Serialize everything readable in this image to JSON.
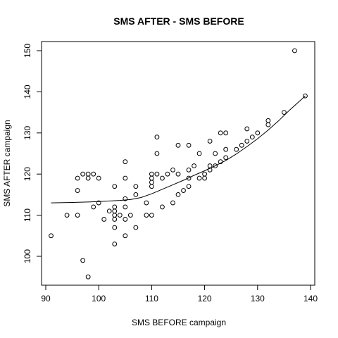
{
  "chart_data": {
    "type": "scatter",
    "title": "SMS AFTER - SMS BEFORE",
    "xlabel": "SMS BEFORE campaign",
    "ylabel": "SMS AFTER campaign",
    "xlim": [
      90,
      140
    ],
    "ylim": [
      93,
      153
    ],
    "xticks": [
      90,
      100,
      110,
      120,
      130,
      140
    ],
    "yticks": [
      100,
      110,
      120,
      130,
      140,
      150
    ],
    "grid": false,
    "points": [
      [
        91,
        105
      ],
      [
        94,
        110
      ],
      [
        96,
        110
      ],
      [
        96,
        116
      ],
      [
        96,
        119
      ],
      [
        97,
        99
      ],
      [
        97,
        120
      ],
      [
        98,
        95
      ],
      [
        98,
        119
      ],
      [
        98,
        120
      ],
      [
        99,
        112
      ],
      [
        99,
        120
      ],
      [
        100,
        113
      ],
      [
        100,
        119
      ],
      [
        101,
        109
      ],
      [
        102,
        111
      ],
      [
        103,
        103
      ],
      [
        103,
        107
      ],
      [
        103,
        109
      ],
      [
        103,
        110
      ],
      [
        103,
        111
      ],
      [
        103,
        112
      ],
      [
        103,
        117
      ],
      [
        104,
        110
      ],
      [
        105,
        105
      ],
      [
        105,
        109
      ],
      [
        105,
        112
      ],
      [
        105,
        114
      ],
      [
        105,
        119
      ],
      [
        105,
        123
      ],
      [
        106,
        110
      ],
      [
        107,
        107
      ],
      [
        107,
        115
      ],
      [
        107,
        117
      ],
      [
        109,
        110
      ],
      [
        109,
        113
      ],
      [
        110,
        110
      ],
      [
        110,
        117
      ],
      [
        110,
        118
      ],
      [
        110,
        119
      ],
      [
        110,
        120
      ],
      [
        111,
        120
      ],
      [
        111,
        125
      ],
      [
        111,
        129
      ],
      [
        112,
        112
      ],
      [
        112,
        119
      ],
      [
        113,
        120
      ],
      [
        114,
        113
      ],
      [
        114,
        121
      ],
      [
        115,
        115
      ],
      [
        115,
        120
      ],
      [
        115,
        127
      ],
      [
        116,
        116
      ],
      [
        117,
        117
      ],
      [
        117,
        119
      ],
      [
        117,
        121
      ],
      [
        117,
        127
      ],
      [
        118,
        122
      ],
      [
        119,
        119
      ],
      [
        119,
        125
      ],
      [
        120,
        119
      ],
      [
        120,
        120
      ],
      [
        121,
        121
      ],
      [
        121,
        122
      ],
      [
        121,
        128
      ],
      [
        122,
        122
      ],
      [
        122,
        125
      ],
      [
        123,
        123
      ],
      [
        123,
        130
      ],
      [
        124,
        124
      ],
      [
        124,
        126
      ],
      [
        124,
        130
      ],
      [
        126,
        126
      ],
      [
        127,
        127
      ],
      [
        128,
        128
      ],
      [
        128,
        131
      ],
      [
        129,
        129
      ],
      [
        130,
        130
      ],
      [
        132,
        132
      ],
      [
        132,
        133
      ],
      [
        135,
        135
      ],
      [
        137,
        150
      ],
      [
        139,
        139
      ]
    ],
    "smooth_line": [
      [
        91,
        113
      ],
      [
        95,
        113.1
      ],
      [
        100,
        113.3
      ],
      [
        104,
        113.6
      ],
      [
        106,
        113.8
      ],
      [
        108,
        114.3
      ],
      [
        110,
        115.2
      ],
      [
        112,
        116.3
      ],
      [
        114,
        117.4
      ],
      [
        116,
        118.5
      ],
      [
        118,
        119.7
      ],
      [
        120,
        120.8
      ],
      [
        122,
        122
      ],
      [
        124,
        123.3
      ],
      [
        126,
        124.9
      ],
      [
        128,
        126.7
      ],
      [
        130,
        128.6
      ],
      [
        132,
        130.7
      ],
      [
        134,
        133
      ],
      [
        136,
        135.5
      ],
      [
        139,
        139
      ]
    ]
  }
}
